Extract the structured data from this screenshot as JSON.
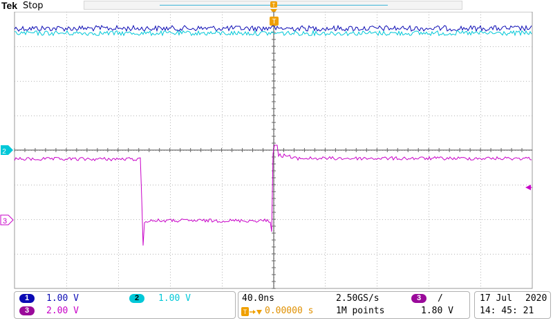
{
  "header": {
    "brand": "Tek",
    "status": "Stop",
    "trigger_marker": "T"
  },
  "channels": {
    "ch1": {
      "number": "1",
      "scale": "1.00 V",
      "color": "#0a0ab4"
    },
    "ch2": {
      "number": "2",
      "scale": "1.00 V",
      "color": "#00c8d8"
    },
    "ch3": {
      "number": "3",
      "scale": "2.00 V",
      "color": "#c800c8"
    }
  },
  "timebase": {
    "scale": "40.0ns",
    "sample_rate": "2.50GS/s",
    "trigger_delay": "0.00000 s",
    "record_length": "1M points"
  },
  "trigger": {
    "source": "3",
    "slope_symbol": "/",
    "level": "1.80 V"
  },
  "datetime": {
    "date_day_month": "17 Jul",
    "year": "2020",
    "time": "14: 45: 21"
  },
  "colors": {
    "trigger_orange": "#f0a000",
    "grid": "#b4b4b4"
  }
}
